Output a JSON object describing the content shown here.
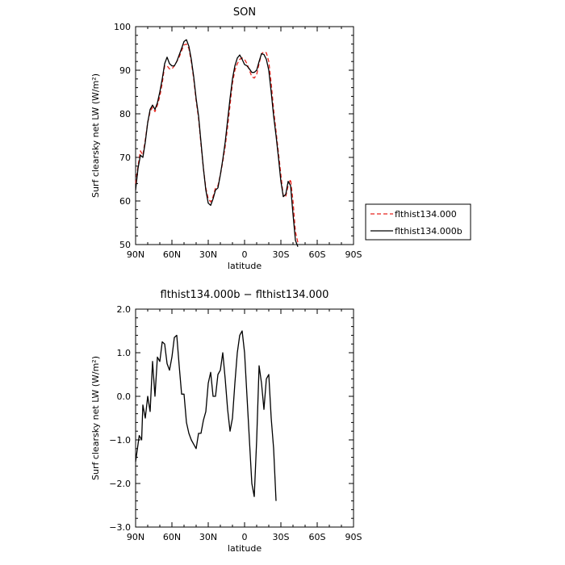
{
  "chart_data": [
    {
      "type": "line",
      "title": "SON",
      "xlabel": "latitude",
      "ylabel": "Surf clearsky net LW (W/m²)",
      "xlim": [
        -90,
        90
      ],
      "ylim": [
        50,
        100
      ],
      "x_ticks": [
        {
          "value": -90,
          "label": "90N"
        },
        {
          "value": -60,
          "label": "60N"
        },
        {
          "value": -30,
          "label": "30N"
        },
        {
          "value": 0,
          "label": "0"
        },
        {
          "value": 30,
          "label": "30S"
        },
        {
          "value": 60,
          "label": "60S"
        },
        {
          "value": 90,
          "label": "90S"
        }
      ],
      "y_ticks": [
        {
          "value": 50,
          "label": "50"
        },
        {
          "value": 60,
          "label": "60"
        },
        {
          "value": 70,
          "label": "70"
        },
        {
          "value": 80,
          "label": "80"
        },
        {
          "value": 90,
          "label": "90"
        },
        {
          "value": 100,
          "label": "100"
        }
      ],
      "legend": {
        "position": "outside-right"
      },
      "series": [
        {
          "name": "flthist134.000",
          "color": "#e8241e",
          "dash": "dashed",
          "points": [
            [
              -90,
              64.0
            ],
            [
              -88,
              68.0
            ],
            [
              -86,
              71.5
            ],
            [
              -84,
              70.5
            ],
            [
              -82,
              74.0
            ],
            [
              -80,
              78.0
            ],
            [
              -78,
              80.5
            ],
            [
              -76,
              81.5
            ],
            [
              -74,
              80.5
            ],
            [
              -72,
              82.0
            ],
            [
              -70,
              84.0
            ],
            [
              -68,
              87.0
            ],
            [
              -66,
              91.0
            ],
            [
              -64,
              91.0
            ],
            [
              -62,
              90.3
            ],
            [
              -60,
              90.3
            ],
            [
              -58,
              91.0
            ],
            [
              -56,
              92.0
            ],
            [
              -54,
              93.0
            ],
            [
              -52,
              94.5
            ],
            [
              -50,
              95.8
            ],
            [
              -48,
              96.0
            ],
            [
              -46,
              95.0
            ],
            [
              -44,
              92.0
            ],
            [
              -42,
              88.0
            ],
            [
              -40,
              83.0
            ],
            [
              -38,
              79.0
            ],
            [
              -36,
              73.0
            ],
            [
              -34,
              67.5
            ],
            [
              -32,
              63.0
            ],
            [
              -30,
              60.5
            ],
            [
              -28,
              59.8
            ],
            [
              -26,
              61.0
            ],
            [
              -24,
              63.0
            ],
            [
              -22,
              63.5
            ],
            [
              -20,
              66.0
            ],
            [
              -18,
              69.0
            ],
            [
              -16,
              72.5
            ],
            [
              -14,
              77.0
            ],
            [
              -12,
              82.0
            ],
            [
              -10,
              87.0
            ],
            [
              -8,
              90.0
            ],
            [
              -6,
              91.5
            ],
            [
              -4,
              92.5
            ],
            [
              -2,
              92.8
            ],
            [
              0,
              92.5
            ],
            [
              2,
              91.5
            ],
            [
              4,
              90.0
            ],
            [
              6,
              88.5
            ],
            [
              8,
              88.2
            ],
            [
              10,
              89.0
            ],
            [
              12,
              91.5
            ],
            [
              14,
              93.8
            ],
            [
              16,
              94.2
            ],
            [
              18,
              94.0
            ],
            [
              20,
              92.0
            ],
            [
              22,
              87.0
            ],
            [
              24,
              81.0
            ],
            [
              26,
              76.0
            ],
            [
              28,
              71.0
            ],
            [
              30,
              66.0
            ],
            [
              32,
              61.0
            ],
            [
              34,
              61.0
            ],
            [
              36,
              63.5
            ],
            [
              38,
              65.0
            ],
            [
              40,
              60.0
            ],
            [
              42,
              53.0
            ],
            [
              44,
              50.5
            ]
          ]
        },
        {
          "name": "flthist134.000b",
          "color": "#000000",
          "dash": "solid",
          "points": [
            [
              -90,
              62.5
            ],
            [
              -88,
              67.5
            ],
            [
              -86,
              70.5
            ],
            [
              -84,
              70.0
            ],
            [
              -82,
              73.5
            ],
            [
              -80,
              78.0
            ],
            [
              -78,
              81.0
            ],
            [
              -76,
              82.0
            ],
            [
              -74,
              81.0
            ],
            [
              -72,
              82.5
            ],
            [
              -70,
              85.0
            ],
            [
              -68,
              88.0
            ],
            [
              -66,
              91.5
            ],
            [
              -64,
              93.0
            ],
            [
              -62,
              91.5
            ],
            [
              -60,
              91.0
            ],
            [
              -58,
              91.0
            ],
            [
              -56,
              92.0
            ],
            [
              -54,
              93.5
            ],
            [
              -52,
              95.0
            ],
            [
              -50,
              96.6
            ],
            [
              -48,
              97.0
            ],
            [
              -46,
              95.5
            ],
            [
              -44,
              92.5
            ],
            [
              -42,
              88.5
            ],
            [
              -40,
              83.5
            ],
            [
              -38,
              79.5
            ],
            [
              -36,
              73.5
            ],
            [
              -34,
              67.5
            ],
            [
              -32,
              62.5
            ],
            [
              -30,
              59.5
            ],
            [
              -28,
              59.0
            ],
            [
              -26,
              60.5
            ],
            [
              -24,
              62.5
            ],
            [
              -22,
              63.0
            ],
            [
              -20,
              66.0
            ],
            [
              -18,
              69.5
            ],
            [
              -16,
              73.5
            ],
            [
              -14,
              78.5
            ],
            [
              -12,
              83.5
            ],
            [
              -10,
              88.0
            ],
            [
              -8,
              91.0
            ],
            [
              -6,
              92.8
            ],
            [
              -4,
              93.5
            ],
            [
              -2,
              92.5
            ],
            [
              0,
              91.3
            ],
            [
              2,
              91.0
            ],
            [
              4,
              90.3
            ],
            [
              6,
              89.5
            ],
            [
              8,
              89.5
            ],
            [
              10,
              90.0
            ],
            [
              12,
              92.0
            ],
            [
              14,
              93.8
            ],
            [
              16,
              93.6
            ],
            [
              18,
              92.5
            ],
            [
              20,
              90.0
            ],
            [
              22,
              85.0
            ],
            [
              24,
              79.5
            ],
            [
              26,
              75.0
            ],
            [
              28,
              70.0
            ],
            [
              30,
              64.5
            ],
            [
              32,
              61.0
            ],
            [
              34,
              61.5
            ],
            [
              36,
              64.5
            ],
            [
              38,
              63.5
            ],
            [
              40,
              57.0
            ],
            [
              42,
              51.0
            ],
            [
              44,
              49.5
            ]
          ]
        }
      ]
    },
    {
      "type": "line",
      "title": "flthist134.000b − flthist134.000",
      "xlabel": "latitude",
      "ylabel": "Surf clearsky net LW (W/m²)",
      "xlim": [
        -90,
        90
      ],
      "ylim": [
        -3,
        2
      ],
      "x_ticks": [
        {
          "value": -90,
          "label": "90N"
        },
        {
          "value": -60,
          "label": "60N"
        },
        {
          "value": -30,
          "label": "30N"
        },
        {
          "value": 0,
          "label": "0"
        },
        {
          "value": 30,
          "label": "30S"
        },
        {
          "value": 60,
          "label": "60S"
        },
        {
          "value": 90,
          "label": "90S"
        }
      ],
      "y_ticks": [
        {
          "value": 2,
          "label": "2.0"
        },
        {
          "value": 1,
          "label": "1.0"
        },
        {
          "value": 0,
          "label": "0.0"
        },
        {
          "value": -1,
          "label": "−1.0"
        },
        {
          "value": -2,
          "label": "−2.0"
        },
        {
          "value": -3,
          "label": "−3.0"
        }
      ],
      "series": [
        {
          "color": "#000000",
          "dash": "solid",
          "points": [
            [
              -90,
              -1.5
            ],
            [
              -87,
              -0.9
            ],
            [
              -85,
              -1.0
            ],
            [
              -84,
              -0.2
            ],
            [
              -82,
              -0.5
            ],
            [
              -80,
              0.0
            ],
            [
              -78,
              -0.35
            ],
            [
              -76,
              0.8
            ],
            [
              -74,
              0.0
            ],
            [
              -72,
              0.9
            ],
            [
              -70,
              0.8
            ],
            [
              -68,
              1.25
            ],
            [
              -66,
              1.2
            ],
            [
              -64,
              0.75
            ],
            [
              -62,
              0.6
            ],
            [
              -60,
              0.9
            ],
            [
              -58,
              1.35
            ],
            [
              -56,
              1.4
            ],
            [
              -54,
              0.7
            ],
            [
              -52,
              0.05
            ],
            [
              -50,
              0.05
            ],
            [
              -48,
              -0.6
            ],
            [
              -46,
              -0.85
            ],
            [
              -44,
              -1.0
            ],
            [
              -42,
              -1.1
            ],
            [
              -40,
              -1.2
            ],
            [
              -38,
              -0.85
            ],
            [
              -36,
              -0.85
            ],
            [
              -34,
              -0.55
            ],
            [
              -32,
              -0.35
            ],
            [
              -30,
              0.3
            ],
            [
              -28,
              0.55
            ],
            [
              -26,
              0.0
            ],
            [
              -24,
              0.0
            ],
            [
              -22,
              0.5
            ],
            [
              -20,
              0.6
            ],
            [
              -18,
              1.0
            ],
            [
              -16,
              0.4
            ],
            [
              -14,
              -0.3
            ],
            [
              -12,
              -0.8
            ],
            [
              -10,
              -0.5
            ],
            [
              -8,
              0.3
            ],
            [
              -6,
              1.0
            ],
            [
              -4,
              1.4
            ],
            [
              -2,
              1.5
            ],
            [
              0,
              1.0
            ],
            [
              2,
              0.0
            ],
            [
              4,
              -1.0
            ],
            [
              6,
              -2.0
            ],
            [
              8,
              -2.3
            ],
            [
              10,
              -1.0
            ],
            [
              12,
              0.7
            ],
            [
              14,
              0.3
            ],
            [
              16,
              -0.3
            ],
            [
              18,
              0.4
            ],
            [
              20,
              0.5
            ],
            [
              22,
              -0.5
            ],
            [
              24,
              -1.2
            ],
            [
              26,
              -2.4
            ]
          ]
        }
      ]
    }
  ]
}
